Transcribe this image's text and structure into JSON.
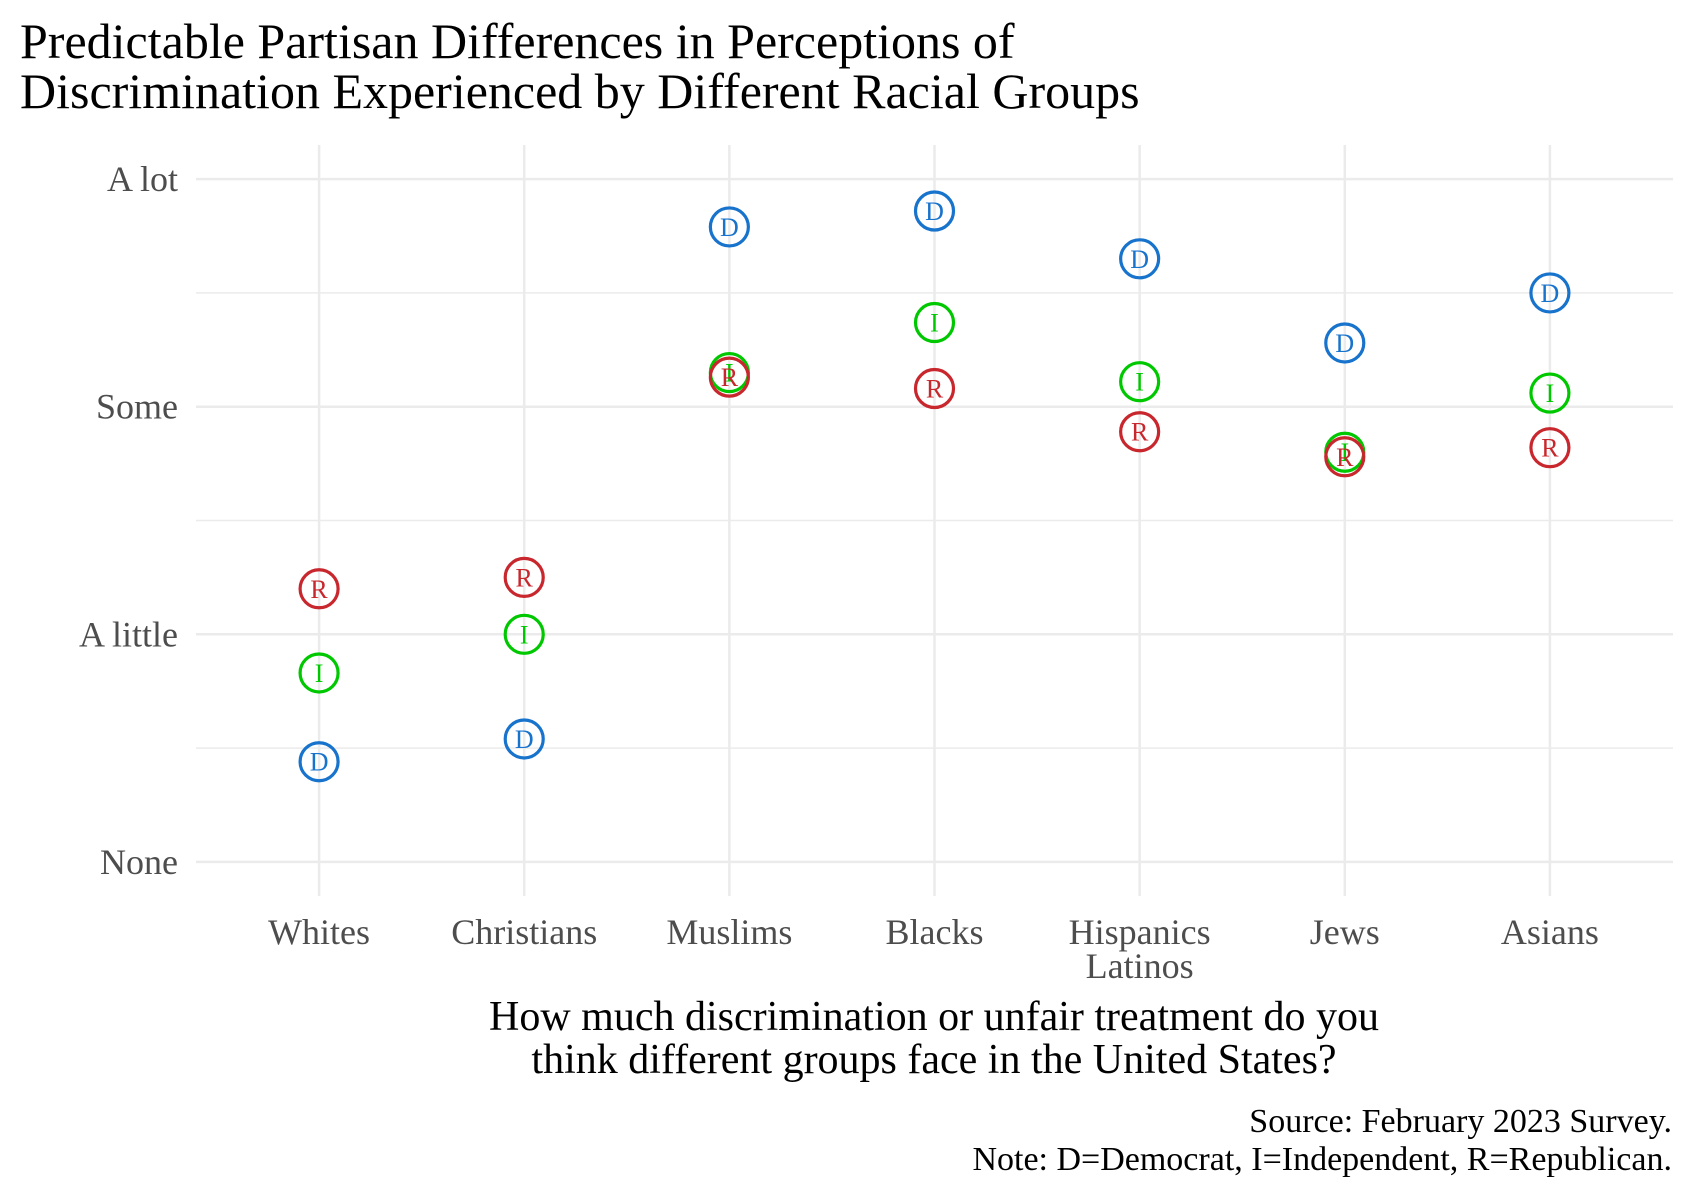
{
  "chart_data": {
    "type": "scatter",
    "title_lines": [
      "Predictable Partisan Differences in Perceptions of",
      "Discrimination Experienced by Different Racial Groups"
    ],
    "xlabel_lines": [
      "How much discrimination or unfair treatment do you",
      "think different groups face in the United States?"
    ],
    "ylabel": "",
    "caption_lines": [
      "Source: February 2023 Survey.",
      "Note: D=Democrat, I=Independent, R=Republican."
    ],
    "categories": [
      [
        "Whites"
      ],
      [
        "Christians"
      ],
      [
        "Muslims"
      ],
      [
        "Blacks"
      ],
      [
        "Hispanics",
        "Latinos"
      ],
      [
        "Jews"
      ],
      [
        "Asians"
      ]
    ],
    "y_ticks": [
      {
        "value": 1,
        "label": "None"
      },
      {
        "value": 2,
        "label": "A little"
      },
      {
        "value": 3,
        "label": "Some"
      },
      {
        "value": 4,
        "label": "A lot"
      }
    ],
    "ylim": [
      0.85,
      4.15
    ],
    "grid": true,
    "legend": "none (encoded in caption note)",
    "series": [
      {
        "name": "Democrat",
        "letter": "D",
        "color": "#1873CC",
        "values": [
          1.44,
          1.54,
          3.79,
          3.86,
          3.65,
          3.28,
          3.5
        ]
      },
      {
        "name": "Independent",
        "letter": "I",
        "color": "#00C800",
        "values": [
          1.83,
          2.0,
          3.15,
          3.37,
          3.11,
          2.8,
          3.06
        ]
      },
      {
        "name": "Republican",
        "letter": "R",
        "color": "#C8272D",
        "values": [
          2.2,
          2.25,
          3.13,
          3.08,
          2.89,
          2.78,
          2.82
        ]
      }
    ]
  },
  "colors": {
    "grid": "#EBEBEB",
    "tick_text": "#4D4D4D",
    "text": "#000000",
    "background": "#FFFFFF"
  }
}
